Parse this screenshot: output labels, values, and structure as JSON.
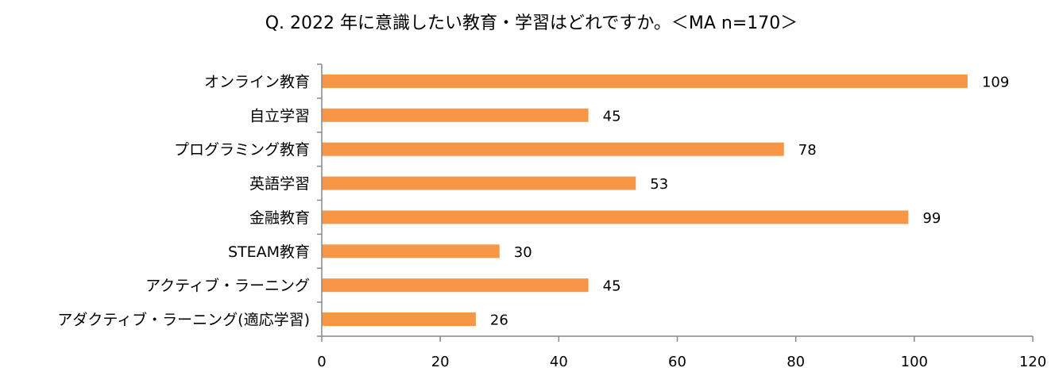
{
  "chart_data": {
    "type": "bar",
    "orientation": "horizontal",
    "title": "Q. 2022 年に意識したい教育・学習はどれですか。＜MA n=170＞",
    "categories": [
      "オンライン教育",
      "自立学習",
      "プログラミング教育",
      "英語学習",
      "金融教育",
      "STEAM教育",
      "アクティブ・ラーニング",
      "アダクティブ・ラーニング(適応学習)"
    ],
    "values": [
      109,
      45,
      78,
      53,
      99,
      30,
      45,
      26
    ],
    "xlim": [
      0,
      120
    ],
    "xticks": [
      0,
      20,
      40,
      60,
      80,
      100,
      120
    ],
    "xlabel": "",
    "ylabel": "",
    "grid": false,
    "data_labels": true,
    "bar_color": "#F79646"
  }
}
